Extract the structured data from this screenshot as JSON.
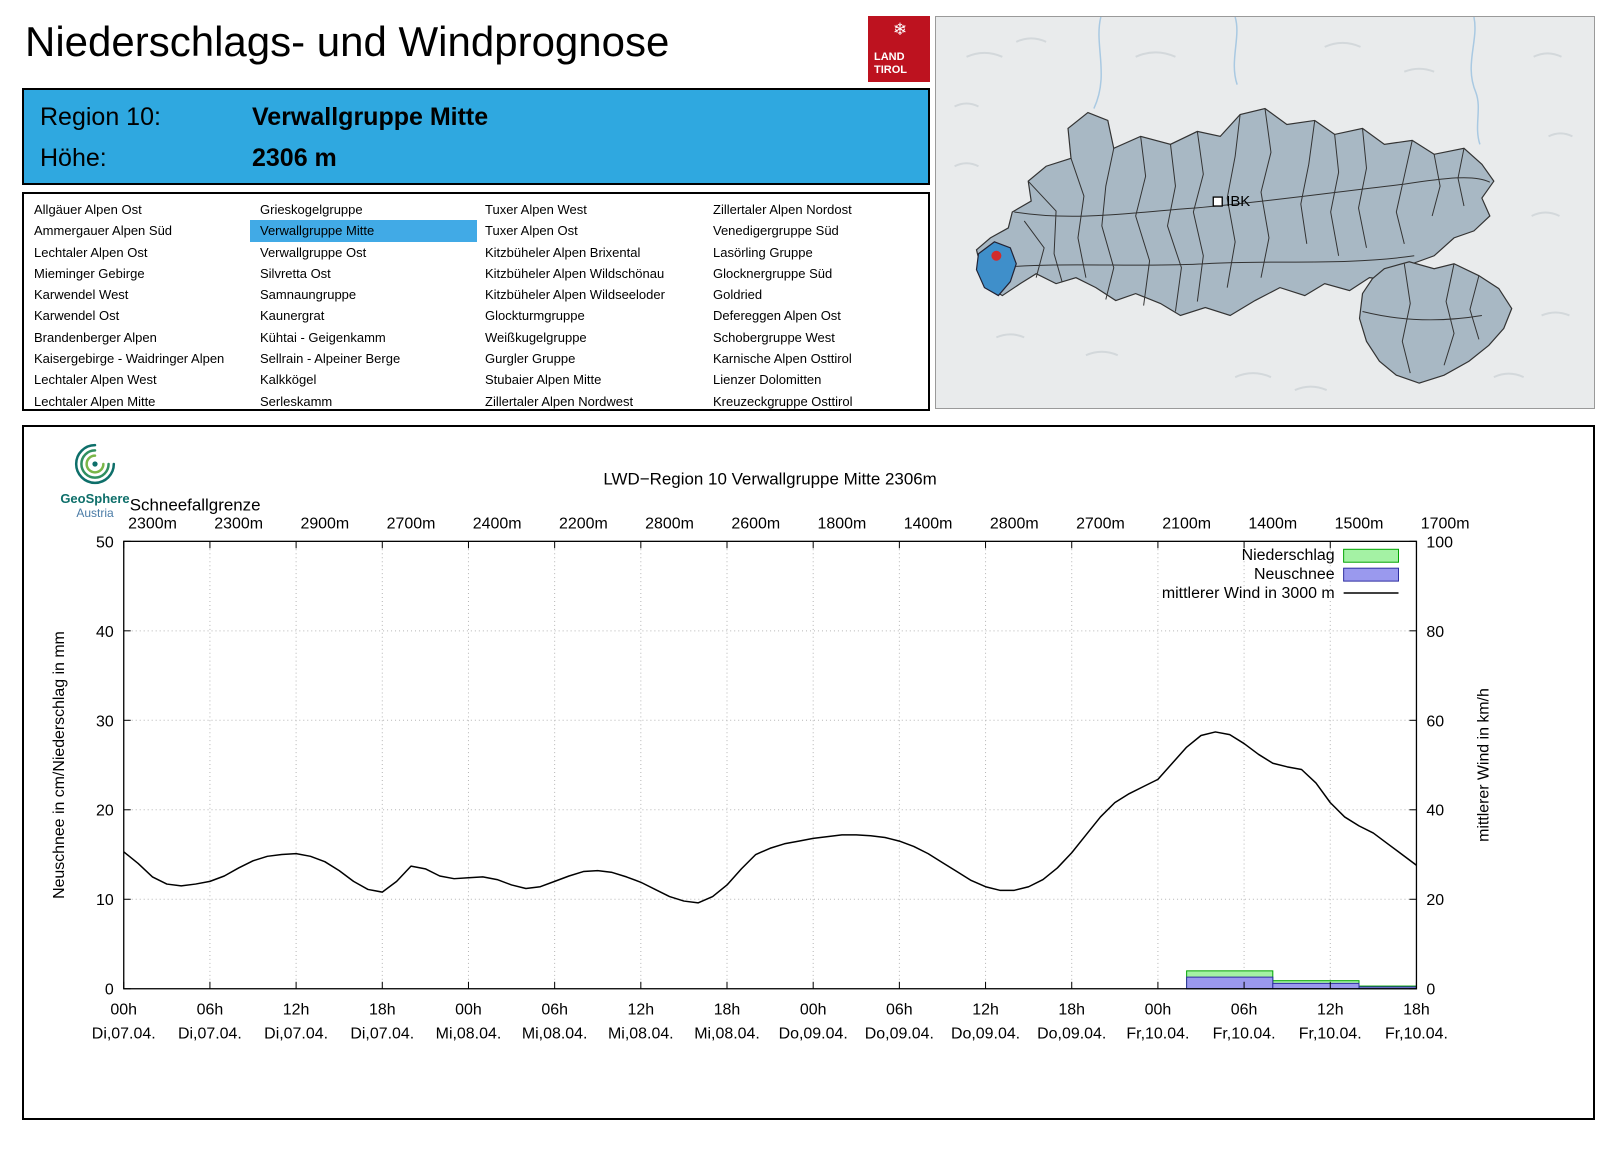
{
  "header": {
    "title": "Niederschlags- und Windprognose",
    "logo": {
      "line1": "LAND",
      "line2": "TIROL",
      "snowflake": "❄",
      "color": "#bd121f"
    }
  },
  "region_info": {
    "region_label": "Region 10:",
    "region_value": "Verwallgruppe Mitte",
    "altitude_label": "Höhe:",
    "altitude_value": "2306 m",
    "accent_color": "#2fa8e0"
  },
  "map": {
    "city_marker": "IBK",
    "selected_region": "Verwallgruppe Mitte",
    "region_fill": "#a8b8c4",
    "selected_fill": "#3f8fca",
    "dot_color": "#d22c2c"
  },
  "region_list": {
    "selected": "Verwallgruppe Mitte",
    "selected_color": "#41aae6",
    "columns": [
      [
        "Allgäuer Alpen Ost",
        "Ammergauer Alpen Süd",
        "Lechtaler Alpen Ost",
        "Mieminger Gebirge",
        "Karwendel West",
        "Karwendel Ost",
        "Brandenberger Alpen",
        "Kaisergebirge - Waidringer Alpen",
        "Lechtaler Alpen West",
        "Lechtaler Alpen Mitte"
      ],
      [
        "Grieskogelgruppe",
        "Verwallgruppe Mitte",
        "Verwallgruppe Ost",
        "Silvretta Ost",
        "Samnaungruppe",
        "Kaunergrat",
        "Kühtai - Geigenkamm",
        "Sellrain - Alpeiner Berge",
        "Kalkkögel",
        "Serleskamm"
      ],
      [
        "Tuxer Alpen West",
        "Tuxer Alpen Ost",
        "Kitzbüheler Alpen Brixental",
        "Kitzbüheler Alpen Wildschönau",
        "Kitzbüheler Alpen Wildseeloder",
        "Glockturmgruppe",
        "Weißkugelgruppe",
        "Gurgler Gruppe",
        "Stubaier Alpen Mitte",
        "Zillertaler Alpen Nordwest"
      ],
      [
        "Zillertaler Alpen Nordost",
        "Venedigergruppe Süd",
        "Lasörling Gruppe",
        "Glocknergruppe Süd",
        "Goldried",
        "Defereggen Alpen Ost",
        "Schobergruppe West",
        "Karnische Alpen Osttirol",
        "Lienzer Dolomitten",
        "Kreuzeckgruppe Osttirol"
      ]
    ]
  },
  "chart_data": {
    "type": "line+bar",
    "title": "LWD−Region 10 Verwallgruppe Mitte 2306m",
    "provider": {
      "name": "GeoSphere",
      "sub": "Austria"
    },
    "top_axis": {
      "label": "Schneefallgrenze",
      "values": [
        "2300m",
        "2300m",
        "2900m",
        "2700m",
        "2400m",
        "2200m",
        "2800m",
        "2600m",
        "1800m",
        "1400m",
        "2800m",
        "2700m",
        "2100m",
        "1400m",
        "1500m",
        "1700m"
      ]
    },
    "ylabel_left": "Neuschnee in cm/Niederschlag in mm",
    "ylabel_right": "mittlerer Wind in km/h",
    "ylim_left": [
      0,
      50
    ],
    "ylim_right": [
      0,
      100
    ],
    "yticks_left": [
      0,
      10,
      20,
      30,
      40,
      50
    ],
    "yticks_right": [
      0,
      20,
      40,
      60,
      80,
      100
    ],
    "x_hours_total": 90,
    "x_ticks": [
      {
        "time": "00h",
        "date": "Di,07.04."
      },
      {
        "time": "06h",
        "date": "Di,07.04."
      },
      {
        "time": "12h",
        "date": "Di,07.04."
      },
      {
        "time": "18h",
        "date": "Di,07.04."
      },
      {
        "time": "00h",
        "date": "Mi,08.04."
      },
      {
        "time": "06h",
        "date": "Mi,08.04."
      },
      {
        "time": "12h",
        "date": "Mi,08.04."
      },
      {
        "time": "18h",
        "date": "Mi,08.04."
      },
      {
        "time": "00h",
        "date": "Do,09.04."
      },
      {
        "time": "06h",
        "date": "Do,09.04."
      },
      {
        "time": "12h",
        "date": "Do,09.04."
      },
      {
        "time": "18h",
        "date": "Do,09.04."
      },
      {
        "time": "00h",
        "date": "Fr,10.04."
      },
      {
        "time": "06h",
        "date": "Fr,10.04."
      },
      {
        "time": "12h",
        "date": "Fr,10.04."
      },
      {
        "time": "18h",
        "date": "Fr,10.04."
      }
    ],
    "legend": [
      {
        "label": "Niederschlag",
        "type": "box",
        "fill": "#a4f2a4",
        "stroke": "#00a400"
      },
      {
        "label": "Neuschnee",
        "type": "box",
        "fill": "#9a99ee",
        "stroke": "#2d2da0"
      },
      {
        "label": "mittlerer Wind in 3000 m",
        "type": "line",
        "stroke": "#000000"
      }
    ],
    "colors": {
      "precip_fill": "#a4f2a4",
      "precip_stroke": "#00a400",
      "snow_fill": "#9a99ee",
      "snow_stroke": "#2d2da0",
      "wind": "#000000"
    },
    "wind_series": {
      "name": "mittlerer Wind in 3000 m",
      "unit": "km/h",
      "axis": "right",
      "x_step_hours": 1,
      "values_kmh": [
        30.6,
        28,
        25,
        23.4,
        23,
        23.4,
        24,
        25.2,
        27,
        28.6,
        29.6,
        30,
        30.2,
        29.6,
        28.4,
        26.4,
        24,
        22.2,
        21.6,
        24,
        27.4,
        26.8,
        25.2,
        24.6,
        24.8,
        25,
        24.4,
        23.2,
        22.4,
        22.8,
        24,
        25.2,
        26.2,
        26.4,
        26,
        25,
        23.8,
        22.2,
        20.6,
        19.6,
        19.2,
        20.6,
        23.2,
        26.8,
        30,
        31.4,
        32.4,
        33,
        33.6,
        34,
        34.4,
        34.4,
        34.2,
        33.8,
        33,
        31.8,
        30.2,
        28.2,
        26.2,
        24.2,
        22.8,
        22,
        22,
        22.8,
        24.4,
        27,
        30.4,
        34.4,
        38.4,
        41.6,
        43.6,
        45.2,
        46.8,
        50.4,
        54,
        56.6,
        57.4,
        56.8,
        54.8,
        52.4,
        50.4,
        49.6,
        49,
        46,
        41.6,
        38.4,
        36.4,
        34.8,
        32.4,
        30,
        27.6
      ]
    },
    "precip_blocks": {
      "name": "Niederschlag",
      "unit": "mm",
      "blocks": [
        {
          "from_hour": 74,
          "to_hour": 80,
          "value": 2.0
        },
        {
          "from_hour": 80,
          "to_hour": 86,
          "value": 0.9
        },
        {
          "from_hour": 86,
          "to_hour": 90,
          "value": 0.3
        }
      ]
    },
    "snow_blocks": {
      "name": "Neuschnee",
      "unit": "cm",
      "blocks": [
        {
          "from_hour": 74,
          "to_hour": 80,
          "value": 1.3
        },
        {
          "from_hour": 80,
          "to_hour": 86,
          "value": 0.6
        },
        {
          "from_hour": 86,
          "to_hour": 90,
          "value": 0.2
        }
      ]
    }
  }
}
